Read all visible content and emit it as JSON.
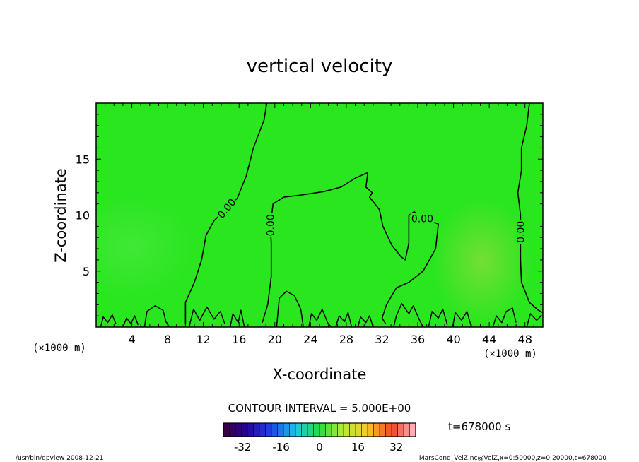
{
  "chart_data": {
    "type": "heatmap",
    "title": "vertical velocity",
    "xlabel": "X-coordinate",
    "ylabel": "Z-coordinate",
    "x_unit": "(×1000 m)",
    "xlim": [
      0,
      50
    ],
    "ylim": [
      0,
      20
    ],
    "x_ticks": [
      4,
      8,
      12,
      16,
      20,
      24,
      28,
      32,
      36,
      40,
      44,
      48
    ],
    "y_ticks": [
      5,
      10,
      15
    ],
    "contour_interval_text": "CONTOUR INTERVAL = 5.000E+00",
    "contour_label": "0.00",
    "contour_labels": [
      {
        "text": "0.00",
        "x": 14.6,
        "z": 10.6
      },
      {
        "text": "0.00",
        "x": 19.5,
        "z": 9.1
      },
      {
        "text": "0.00",
        "x": 36.5,
        "z": 9.7
      },
      {
        "text": "0.00",
        "x": 47.5,
        "z": 8.5
      }
    ],
    "zero_contours": [
      [
        [
          19.1,
          20
        ],
        [
          18.8,
          18.5
        ],
        [
          17.6,
          16
        ],
        [
          16.8,
          13.5
        ],
        [
          15.8,
          11.5
        ],
        [
          14.6,
          10.6
        ],
        [
          13.2,
          9.5
        ],
        [
          12.3,
          8.2
        ],
        [
          11.8,
          6
        ],
        [
          11,
          4
        ],
        [
          10,
          2.2
        ],
        [
          10,
          0.3
        ]
      ],
      [
        [
          18.6,
          0.4
        ],
        [
          19.2,
          2
        ],
        [
          19.6,
          4.5
        ],
        [
          19.6,
          7.5
        ],
        [
          19.5,
          9.1
        ],
        [
          19.8,
          11
        ],
        [
          21,
          11.6
        ],
        [
          23,
          11.8
        ],
        [
          25.5,
          12.1
        ],
        [
          27.4,
          12.5
        ],
        [
          29,
          13.3
        ],
        [
          30.4,
          13.8
        ],
        [
          30.2,
          12.5
        ],
        [
          30.9,
          12
        ],
        [
          30.6,
          11.6
        ],
        [
          31.7,
          10.5
        ],
        [
          32.1,
          9
        ],
        [
          33.1,
          7.3
        ],
        [
          34.1,
          6.3
        ],
        [
          34.6,
          6
        ],
        [
          35,
          7.5
        ],
        [
          35,
          10
        ],
        [
          35.6,
          10.3
        ],
        [
          36.5,
          9.7
        ],
        [
          37.4,
          9.5
        ],
        [
          38.3,
          9.2
        ],
        [
          38,
          7
        ],
        [
          36.6,
          5
        ],
        [
          35,
          4
        ],
        [
          33.6,
          3.5
        ],
        [
          32.5,
          2
        ],
        [
          32,
          0.8
        ],
        [
          32.4,
          0.3
        ]
      ],
      [
        [
          48.5,
          20
        ],
        [
          48.2,
          18
        ],
        [
          47.6,
          16
        ],
        [
          47.6,
          14
        ],
        [
          47.2,
          12
        ],
        [
          47.5,
          10
        ],
        [
          47.5,
          8.5
        ],
        [
          47.5,
          6
        ],
        [
          47.6,
          4
        ],
        [
          48.5,
          2.2
        ],
        [
          49.5,
          1.5
        ],
        [
          50,
          1.3
        ]
      ]
    ],
    "surface_contours": [
      [
        [
          0.5,
          0
        ],
        [
          0.8,
          0.9
        ],
        [
          1.3,
          0.4
        ],
        [
          1.8,
          1.1
        ],
        [
          2.2,
          0.3
        ]
      ],
      [
        [
          3,
          0
        ],
        [
          3.4,
          0.8
        ],
        [
          3.9,
          0.3
        ],
        [
          4.3,
          1
        ],
        [
          4.7,
          0.2
        ]
      ],
      [
        [
          5.4,
          0
        ],
        [
          5.7,
          1.4
        ],
        [
          6.6,
          1.9
        ],
        [
          7.5,
          1.5
        ],
        [
          7.8,
          0.5
        ],
        [
          8.2,
          0
        ]
      ],
      [
        [
          10.4,
          0
        ],
        [
          10.9,
          1.6
        ],
        [
          11.6,
          0.6
        ],
        [
          12.4,
          1.8
        ],
        [
          13.2,
          0.7
        ],
        [
          13.9,
          1.4
        ],
        [
          14.4,
          0.3
        ]
      ],
      [
        [
          15,
          0
        ],
        [
          15.3,
          1.2
        ],
        [
          15.9,
          0.4
        ],
        [
          16.2,
          1.5
        ],
        [
          16.6,
          0
        ]
      ],
      [
        [
          20.2,
          0
        ],
        [
          20.5,
          2.6
        ],
        [
          21.3,
          3.2
        ],
        [
          22.2,
          2.8
        ],
        [
          22.9,
          1.6
        ],
        [
          23.2,
          0
        ]
      ],
      [
        [
          23.8,
          0
        ],
        [
          24.1,
          1.2
        ],
        [
          24.7,
          0.6
        ],
        [
          25.3,
          1.6
        ],
        [
          25.9,
          0.4
        ],
        [
          26.3,
          0
        ]
      ],
      [
        [
          26.8,
          0
        ],
        [
          27.2,
          1
        ],
        [
          27.8,
          0.5
        ],
        [
          28.2,
          1.3
        ],
        [
          28.6,
          0
        ]
      ],
      [
        [
          29.3,
          0
        ],
        [
          29.6,
          0.9
        ],
        [
          30.2,
          0.4
        ],
        [
          30.6,
          1
        ],
        [
          31,
          0
        ]
      ],
      [
        [
          33.3,
          0
        ],
        [
          33.6,
          1
        ],
        [
          34.2,
          2.1
        ],
        [
          35,
          1.2
        ],
        [
          35.5,
          1.9
        ],
        [
          36.2,
          0.6
        ],
        [
          36.6,
          0
        ]
      ],
      [
        [
          37.2,
          0
        ],
        [
          37.6,
          1.4
        ],
        [
          38.3,
          0.8
        ],
        [
          38.8,
          1.6
        ],
        [
          39.3,
          0.2
        ]
      ],
      [
        [
          39.9,
          0
        ],
        [
          40.2,
          1.3
        ],
        [
          40.9,
          0.6
        ],
        [
          41.5,
          1.4
        ],
        [
          42,
          0
        ]
      ],
      [
        [
          44.4,
          0
        ],
        [
          44.8,
          1
        ],
        [
          45.4,
          0.4
        ],
        [
          45.9,
          1.4
        ],
        [
          46.6,
          1.7
        ],
        [
          47,
          0.4
        ]
      ],
      [
        [
          48.2,
          0
        ],
        [
          48.6,
          1.2
        ],
        [
          49.3,
          0.6
        ],
        [
          49.8,
          1
        ]
      ]
    ],
    "colorbar": {
      "tick_labels": [
        "-32",
        "-16",
        "0",
        "16",
        "32"
      ],
      "tick_values": [
        -32,
        -16,
        0,
        16,
        32
      ],
      "range": [
        -40,
        40
      ],
      "bins": 32
    },
    "time_label": "t=678000 s",
    "footer_left": "/usr/bin/gpview   2008-12-21",
    "footer_right": "MarsCond_VelZ.nc@VelZ,x=0:50000,z=0:20000,t=678000",
    "colors": {
      "field": "#29e61f",
      "contour": "#000000",
      "frame": "#000000"
    }
  }
}
